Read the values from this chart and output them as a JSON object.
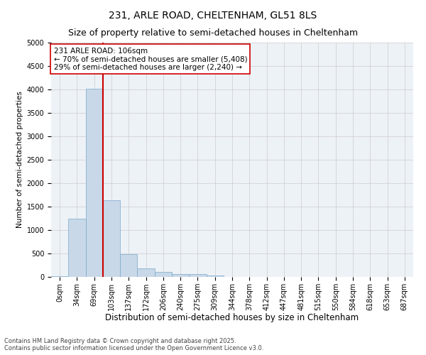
{
  "title1": "231, ARLE ROAD, CHELTENHAM, GL51 8LS",
  "title2": "Size of property relative to semi-detached houses in Cheltenham",
  "xlabel": "Distribution of semi-detached houses by size in Cheltenham",
  "ylabel": "Number of semi-detached properties",
  "bar_labels": [
    "0sqm",
    "34sqm",
    "69sqm",
    "103sqm",
    "137sqm",
    "172sqm",
    "206sqm",
    "240sqm",
    "275sqm",
    "309sqm",
    "344sqm",
    "378sqm",
    "412sqm",
    "447sqm",
    "481sqm",
    "515sqm",
    "550sqm",
    "584sqm",
    "618sqm",
    "653sqm",
    "687sqm"
  ],
  "bar_values": [
    20,
    1240,
    4020,
    1630,
    480,
    185,
    100,
    60,
    55,
    30,
    0,
    0,
    0,
    0,
    0,
    0,
    0,
    0,
    0,
    0,
    0
  ],
  "bar_color": "#c8d8e8",
  "bar_edge_color": "#7aa8c8",
  "vline_color": "#cc0000",
  "annotation_text": "231 ARLE ROAD: 106sqm\n← 70% of semi-detached houses are smaller (5,408)\n29% of semi-detached houses are larger (2,240) →",
  "annotation_box_color": "#cc0000",
  "ylim": [
    0,
    5000
  ],
  "yticks": [
    0,
    500,
    1000,
    1500,
    2000,
    2500,
    3000,
    3500,
    4000,
    4500,
    5000
  ],
  "grid_color": "#cccccc",
  "bg_color": "#edf2f7",
  "footer_text": "Contains HM Land Registry data © Crown copyright and database right 2025.\nContains public sector information licensed under the Open Government Licence v3.0.",
  "title1_fontsize": 10,
  "title2_fontsize": 9,
  "xlabel_fontsize": 8.5,
  "ylabel_fontsize": 7.5,
  "tick_fontsize": 7,
  "annotation_fontsize": 7.5,
  "footer_fontsize": 6
}
